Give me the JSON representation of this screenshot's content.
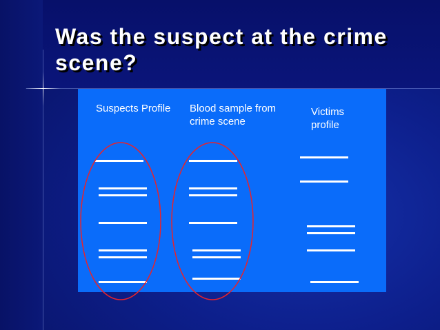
{
  "slide": {
    "title": "Was the suspect at the crime scene?"
  },
  "columns": {
    "suspects": {
      "label": "Suspects Profile"
    },
    "blood": {
      "label": "Blood sample from crime scene"
    },
    "victims": {
      "label": "Victims profile"
    }
  },
  "colors": {
    "background": "#0d1f8c",
    "panel": "#0a6cfa",
    "band": "#ffffff",
    "highlight_ellipse": "#e8232b",
    "title_text": "#ffffff"
  }
}
